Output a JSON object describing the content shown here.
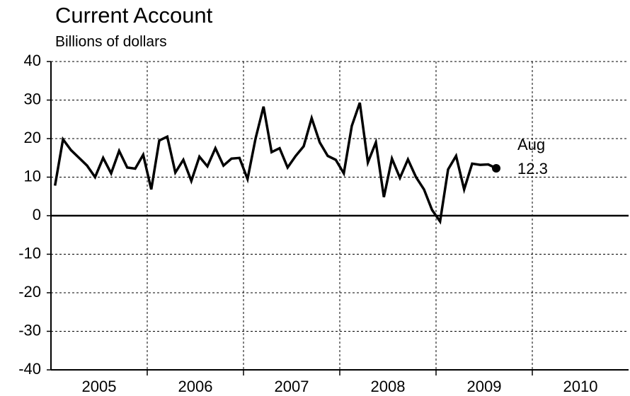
{
  "chart_data": {
    "type": "line",
    "title": "Current Account",
    "subtitle": "Billions of dollars",
    "annotation": "Aug",
    "x": [
      2005.042,
      2005.125,
      2005.208,
      2005.292,
      2005.375,
      2005.458,
      2005.542,
      2005.625,
      2005.708,
      2005.792,
      2005.875,
      2005.958,
      2006.042,
      2006.125,
      2006.208,
      2006.292,
      2006.375,
      2006.458,
      2006.542,
      2006.625,
      2006.708,
      2006.792,
      2006.875,
      2006.958,
      2007.042,
      2007.125,
      2007.208,
      2007.292,
      2007.375,
      2007.458,
      2007.542,
      2007.625,
      2007.708,
      2007.792,
      2007.875,
      2007.958,
      2008.042,
      2008.125,
      2008.208,
      2008.292,
      2008.375,
      2008.458,
      2008.542,
      2008.625,
      2008.708,
      2008.792,
      2008.875,
      2008.958,
      2009.042,
      2009.125,
      2009.208,
      2009.292,
      2009.375,
      2009.458,
      2009.542,
      2009.625
    ],
    "values": [
      7.8,
      19.8,
      17,
      15,
      13,
      10,
      15,
      11,
      16.8,
      12.5,
      12.2,
      15.8,
      6.8,
      19.5,
      20.5,
      11.2,
      14.5,
      9,
      15.3,
      12.8,
      17.5,
      13,
      14.8,
      15,
      9.5,
      20,
      28.3,
      16.5,
      17.5,
      12.5,
      15.5,
      18,
      25.3,
      19,
      15.5,
      14.5,
      11,
      23.3,
      29.3,
      13.8,
      19,
      4.8,
      14.8,
      9.8,
      14.6,
      10,
      6.8,
      1.5,
      -1.5,
      12,
      15.5,
      6.8,
      13.5,
      13.2,
      13.3,
      12.3
    ],
    "color": "#000000",
    "xlim": [
      2005,
      2011
    ],
    "xticks": [
      {
        "value": 2005.5,
        "label": "2005"
      },
      {
        "value": 2006.5,
        "label": "2006"
      },
      {
        "value": 2007.5,
        "label": "2007"
      },
      {
        "value": 2008.5,
        "label": "2008"
      },
      {
        "value": 2009.5,
        "label": "2009"
      },
      {
        "value": 2010.5,
        "label": "2010"
      }
    ],
    "xgrid_lines": [
      2006,
      2007,
      2008,
      2009,
      2010
    ],
    "ylim": [
      -40,
      40
    ],
    "yticks": [
      -40,
      -30,
      -20,
      -10,
      0,
      10,
      20,
      30,
      40
    ],
    "grid": true
  }
}
